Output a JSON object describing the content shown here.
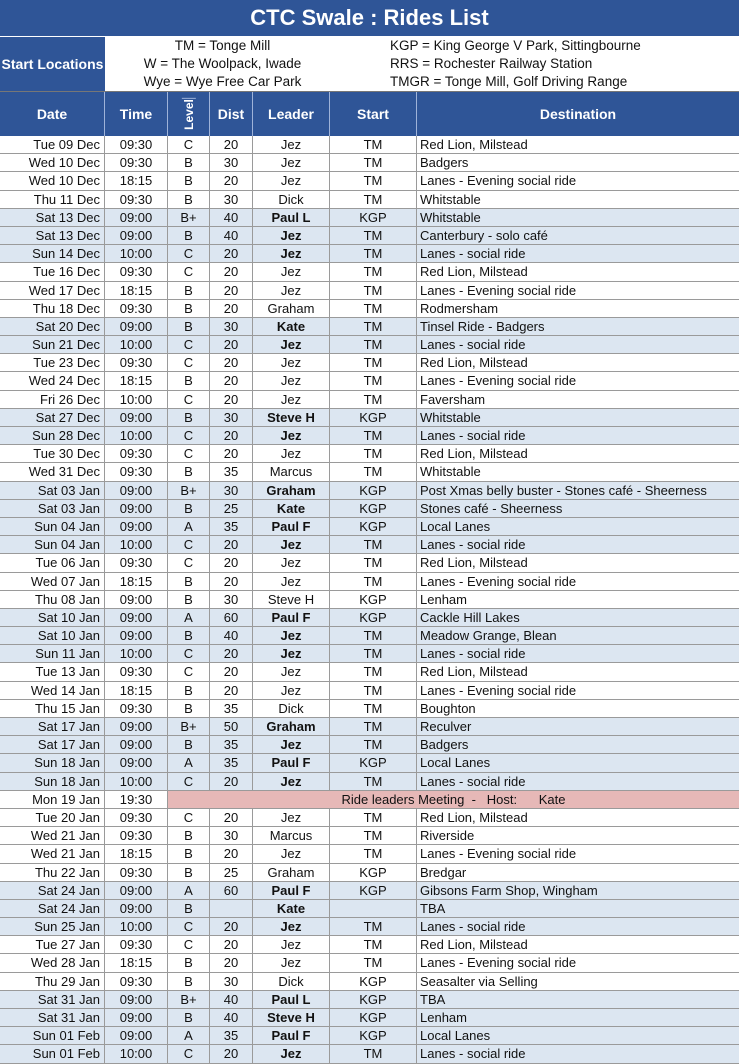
{
  "header": {
    "title": "CTC Swale : Rides List"
  },
  "locations": {
    "label": "Start Locations",
    "left": [
      "TM = Tonge Mill",
      "W = The Woolpack, Iwade",
      "Wye = Wye Free Car Park"
    ],
    "right": [
      "KGP = King George V Park, Sittingbourne",
      "RRS = Rochester Railway Station",
      "TMGR = Tonge Mill, Golf Driving Range"
    ]
  },
  "table": {
    "columns": [
      "Date",
      "Time",
      "Level",
      "Dist",
      "Leader",
      "Start",
      "Destination"
    ],
    "rows": [
      [
        "Tue 09 Dec",
        "09:30",
        "C",
        20,
        "Jez",
        "TM",
        "Red Lion, Milstead"
      ],
      [
        "Wed 10 Dec",
        "09:30",
        "B",
        30,
        "Jez",
        "TM",
        "Badgers"
      ],
      [
        "Wed 10 Dec",
        "18:15",
        "B",
        20,
        "Jez",
        "TM",
        "Lanes - Evening social ride"
      ],
      [
        "Thu 11 Dec",
        "09:30",
        "B",
        30,
        "Dick",
        "TM",
        "Whitstable"
      ],
      [
        "Sat 13 Dec",
        "09:00",
        "B+",
        40,
        "Paul L",
        "KGP",
        "Whitstable"
      ],
      [
        "Sat 13 Dec",
        "09:00",
        "B",
        40,
        "Jez",
        "TM",
        "Canterbury - solo café"
      ],
      [
        "Sun 14 Dec",
        "10:00",
        "C",
        20,
        "Jez",
        "TM",
        "Lanes - social ride"
      ],
      [
        "Tue 16 Dec",
        "09:30",
        "C",
        20,
        "Jez",
        "TM",
        "Red Lion, Milstead"
      ],
      [
        "Wed 17 Dec",
        "18:15",
        "B",
        20,
        "Jez",
        "TM",
        "Lanes - Evening social ride"
      ],
      [
        "Thu 18 Dec",
        "09:30",
        "B",
        20,
        "Graham",
        "TM",
        "Rodmersham"
      ],
      [
        "Sat 20 Dec",
        "09:00",
        "B",
        30,
        "Kate",
        "TM",
        "Tinsel Ride - Badgers"
      ],
      [
        "Sun 21 Dec",
        "10:00",
        "C",
        20,
        "Jez",
        "TM",
        "Lanes - social ride"
      ],
      [
        "Tue 23 Dec",
        "09:30",
        "C",
        20,
        "Jez",
        "TM",
        "Red Lion, Milstead"
      ],
      [
        "Wed 24 Dec",
        "18:15",
        "B",
        20,
        "Jez",
        "TM",
        "Lanes - Evening social ride"
      ],
      [
        "Fri 26 Dec",
        "10:00",
        "C",
        20,
        "Jez",
        "TM",
        "Faversham"
      ],
      [
        "Sat 27 Dec",
        "09:00",
        "B",
        30,
        "Steve H",
        "KGP",
        "Whitstable"
      ],
      [
        "Sun 28 Dec",
        "10:00",
        "C",
        20,
        "Jez",
        "TM",
        "Lanes - social ride"
      ],
      [
        "Tue 30 Dec",
        "09:30",
        "C",
        20,
        "Jez",
        "TM",
        "Red Lion, Milstead"
      ],
      [
        "Wed 31 Dec",
        "09:30",
        "B",
        35,
        "Marcus",
        "TM",
        "Whitstable"
      ],
      [
        "Sat 03 Jan",
        "09:00",
        "B+",
        30,
        "Graham",
        "KGP",
        "Post Xmas belly buster - Stones café - Sheerness"
      ],
      [
        "Sat 03 Jan",
        "09:00",
        "B",
        25,
        "Kate",
        "KGP",
        "Stones café - Sheerness"
      ],
      [
        "Sun 04 Jan",
        "09:00",
        "A",
        35,
        "Paul F",
        "KGP",
        "Local Lanes"
      ],
      [
        "Sun 04 Jan",
        "10:00",
        "C",
        20,
        "Jez",
        "TM",
        "Lanes - social ride"
      ],
      [
        "Tue 06 Jan",
        "09:30",
        "C",
        20,
        "Jez",
        "TM",
        "Red Lion, Milstead"
      ],
      [
        "Wed 07 Jan",
        "18:15",
        "B",
        20,
        "Jez",
        "TM",
        "Lanes - Evening social ride"
      ],
      [
        "Thu 08 Jan",
        "09:00",
        "B",
        30,
        "Steve H",
        "KGP",
        "Lenham"
      ],
      [
        "Sat 10 Jan",
        "09:00",
        "A",
        60,
        "Paul F",
        "KGP",
        "Cackle Hill Lakes"
      ],
      [
        "Sat 10 Jan",
        "09:00",
        "B",
        40,
        "Jez",
        "TM",
        "Meadow Grange, Blean"
      ],
      [
        "Sun 11 Jan",
        "10:00",
        "C",
        20,
        "Jez",
        "TM",
        "Lanes - social ride"
      ],
      [
        "Tue 13 Jan",
        "09:30",
        "C",
        20,
        "Jez",
        "TM",
        "Red Lion, Milstead"
      ],
      [
        "Wed 14 Jan",
        "18:15",
        "B",
        20,
        "Jez",
        "TM",
        "Lanes - Evening social ride"
      ],
      [
        "Thu 15 Jan",
        "09:30",
        "B",
        35,
        "Dick",
        "TM",
        "Boughton"
      ],
      [
        "Sat 17 Jan",
        "09:00",
        "B+",
        50,
        "Graham",
        "TM",
        "Reculver"
      ],
      [
        "Sat 17 Jan",
        "09:00",
        "B",
        35,
        "Jez",
        "TM",
        "Badgers"
      ],
      [
        "Sun 18 Jan",
        "09:00",
        "A",
        35,
        "Paul F",
        "KGP",
        "Local Lanes"
      ],
      [
        "Sun 18 Jan",
        "10:00",
        "C",
        20,
        "Jez",
        "TM",
        "Lanes - social ride"
      ],
      {
        "date": "Mon 19 Jan",
        "time": "19:30",
        "note": "Ride leaders Meeting  -   Host:      Kate"
      },
      [
        "Tue 20 Jan",
        "09:30",
        "C",
        20,
        "Jez",
        "TM",
        "Red Lion, Milstead"
      ],
      [
        "Wed 21 Jan",
        "09:30",
        "B",
        30,
        "Marcus",
        "TM",
        "Riverside"
      ],
      [
        "Wed 21 Jan",
        "18:15",
        "B",
        20,
        "Jez",
        "TM",
        "Lanes - Evening social ride"
      ],
      [
        "Thu 22 Jan",
        "09:30",
        "B",
        25,
        "Graham",
        "KGP",
        "Bredgar"
      ],
      [
        "Sat 24 Jan",
        "09:00",
        "A",
        60,
        "Paul F",
        "KGP",
        "Gibsons Farm Shop, Wingham"
      ],
      [
        "Sat 24 Jan",
        "09:00",
        "B",
        null,
        "Kate",
        null,
        "TBA"
      ],
      [
        "Sun 25 Jan",
        "10:00",
        "C",
        20,
        "Jez",
        "TM",
        "Lanes - social ride"
      ],
      [
        "Tue 27 Jan",
        "09:30",
        "C",
        20,
        "Jez",
        "TM",
        "Red Lion, Milstead"
      ],
      [
        "Wed 28 Jan",
        "18:15",
        "B",
        20,
        "Jez",
        "TM",
        "Lanes - Evening social ride"
      ],
      [
        "Thu 29 Jan",
        "09:30",
        "B",
        30,
        "Dick",
        "KGP",
        "Seasalter via Selling"
      ],
      [
        "Sat 31 Jan",
        "09:00",
        "B+",
        40,
        "Paul L",
        "KGP",
        "TBA"
      ],
      [
        "Sat 31 Jan",
        "09:00",
        "B",
        40,
        "Steve H",
        "KGP",
        "Lenham"
      ],
      [
        "Sun 01 Feb",
        "09:00",
        "A",
        35,
        "Paul F",
        "KGP",
        "Local Lanes"
      ],
      [
        "Sun 01 Feb",
        "10:00",
        "C",
        20,
        "Jez",
        "TM",
        "Lanes - social ride"
      ]
    ]
  }
}
